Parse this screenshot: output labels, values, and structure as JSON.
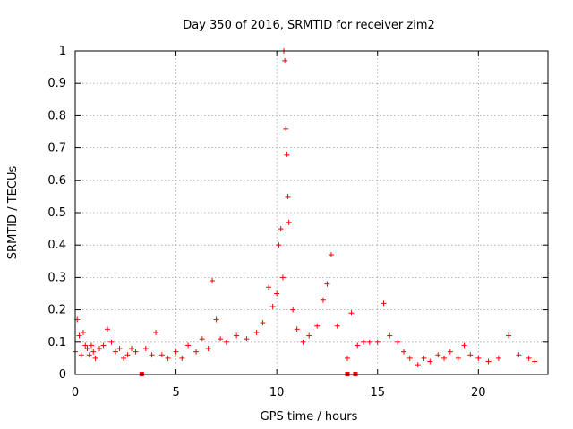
{
  "chart_data": {
    "type": "scatter",
    "title": "Day 350 of 2016, SRMTID for receiver zim2",
    "xlabel": "GPS time / hours",
    "ylabel": "SRMTID / TECUs",
    "xlim": [
      0,
      23.45
    ],
    "ylim": [
      0,
      1
    ],
    "x_ticks": [
      0,
      5,
      10,
      15,
      20
    ],
    "x_tick_labels": [
      "0",
      "5",
      "10",
      "15",
      "20"
    ],
    "y_ticks": [
      0,
      0.1,
      0.2,
      0.3,
      0.4,
      0.5,
      0.6,
      0.7,
      0.8,
      0.9,
      1
    ],
    "y_tick_labels": [
      "0",
      "0.1",
      "0.2",
      "0.3",
      "0.4",
      "0.5",
      "0.6",
      "0.7",
      "0.8",
      "0.9",
      "1"
    ],
    "grid": true,
    "marker": "+",
    "color": "#ff0000",
    "series": [
      {
        "name": "SRMTID",
        "x": [
          0.0,
          0.1,
          0.2,
          0.3,
          0.4,
          0.5,
          0.6,
          0.7,
          0.8,
          0.9,
          1.0,
          1.2,
          1.4,
          1.6,
          1.8,
          2.0,
          2.2,
          2.4,
          2.6,
          2.8,
          3.0,
          3.5,
          3.8,
          4.0,
          4.3,
          4.6,
          5.0,
          5.3,
          5.6,
          6.0,
          6.3,
          6.6,
          6.8,
          7.0,
          7.2,
          7.5,
          8.0,
          8.5,
          9.0,
          9.3,
          9.6,
          9.8,
          10.0,
          10.1,
          10.2,
          10.3,
          10.35,
          10.4,
          10.45,
          10.5,
          10.55,
          10.6,
          10.8,
          11.0,
          11.3,
          11.6,
          12.0,
          12.3,
          12.5,
          12.7,
          13.0,
          13.5,
          13.7,
          14.0,
          14.3,
          14.6,
          15.0,
          15.3,
          15.6,
          16.0,
          16.3,
          16.6,
          17.0,
          17.3,
          17.6,
          18.0,
          18.3,
          18.6,
          19.0,
          19.3,
          19.6,
          20.0,
          20.5,
          21.0,
          21.5,
          22.0,
          22.5,
          22.8
        ],
        "y": [
          0.07,
          0.17,
          0.12,
          0.06,
          0.13,
          0.09,
          0.08,
          0.06,
          0.09,
          0.07,
          0.05,
          0.08,
          0.09,
          0.14,
          0.1,
          0.07,
          0.08,
          0.05,
          0.06,
          0.08,
          0.07,
          0.08,
          0.06,
          0.13,
          0.06,
          0.05,
          0.07,
          0.05,
          0.09,
          0.07,
          0.11,
          0.08,
          0.29,
          0.17,
          0.11,
          0.1,
          0.12,
          0.11,
          0.13,
          0.16,
          0.27,
          0.21,
          0.25,
          0.4,
          0.45,
          0.3,
          1.0,
          0.97,
          0.76,
          0.68,
          0.55,
          0.47,
          0.2,
          0.14,
          0.1,
          0.12,
          0.15,
          0.23,
          0.28,
          0.37,
          0.15,
          0.05,
          0.19,
          0.09,
          0.1,
          0.1,
          0.1,
          0.22,
          0.12,
          0.1,
          0.07,
          0.05,
          0.03,
          0.05,
          0.04,
          0.06,
          0.05,
          0.07,
          0.05,
          0.09,
          0.06,
          0.05,
          0.04,
          0.05,
          0.12,
          0.06,
          0.05,
          0.04
        ]
      }
    ],
    "data_gaps_x": [
      3.3,
      13.5,
      13.9
    ]
  }
}
